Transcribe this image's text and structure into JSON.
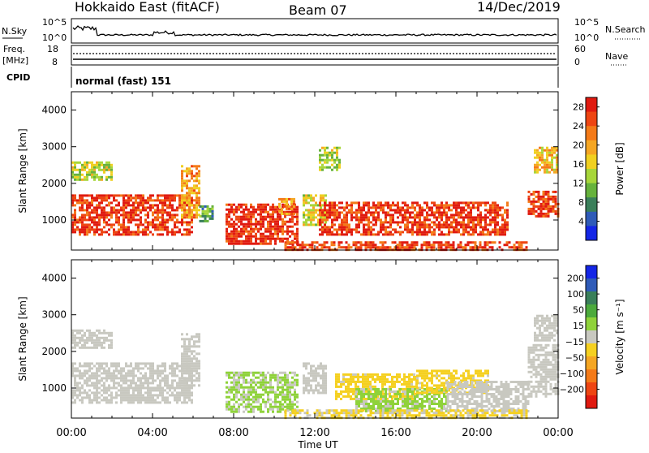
{
  "header": {
    "title": "Hokkaido East (fitACF)",
    "beam": "Beam 07",
    "date": "14/Dec/2019"
  },
  "panels": {
    "nsky": {
      "label": "N.Sky",
      "yticks_left": [
        "10^5",
        "10^0"
      ],
      "right_label": "N.Search",
      "yticks_right": [
        "10^5",
        "10^0"
      ]
    },
    "freq": {
      "label_top": "Freq.",
      "label_unit": "[MHz]",
      "yticks_left": [
        "18",
        "8"
      ],
      "right_label": "Nave",
      "yticks_right": [
        "60",
        "0"
      ]
    },
    "cpid": {
      "label": "CPID",
      "text": "normal (fast) 151"
    }
  },
  "chart_data": [
    {
      "type": "heatmap",
      "name": "power",
      "ylabel": "Slant Range [km]",
      "xlabel": "Time UT",
      "xticks": [
        "00:00",
        "04:00",
        "08:00",
        "12:00",
        "16:00",
        "20:00",
        "00:00"
      ],
      "yticks": [
        "1000",
        "2000",
        "3000",
        "4000"
      ],
      "ylim": [
        180,
        4500
      ],
      "xlim_hours": [
        0,
        24
      ],
      "colorbar": {
        "label": "Power [dB]",
        "ticks": [
          "4",
          "8",
          "12",
          "16",
          "20",
          "24",
          "28"
        ],
        "range": [
          0,
          30
        ],
        "colors": [
          "#1426e6",
          "#2f5bb8",
          "#3a7f5a",
          "#66b23c",
          "#a7d63a",
          "#f0d020",
          "#f5a623",
          "#f47a18",
          "#ee4512",
          "#e01a10"
        ]
      },
      "regions": [
        {
          "t0": 0.0,
          "t1": 6.0,
          "r0": 600,
          "r1": 1700,
          "level": 27
        },
        {
          "t0": 0.0,
          "t1": 2.0,
          "r0": 2100,
          "r1": 2600,
          "level": 14
        },
        {
          "t0": 5.4,
          "t1": 6.3,
          "r0": 1100,
          "r1": 2500,
          "level": 20
        },
        {
          "t0": 6.3,
          "t1": 7.0,
          "r0": 1000,
          "r1": 1400,
          "level": 10
        },
        {
          "t0": 7.6,
          "t1": 11.2,
          "r0": 350,
          "r1": 1450,
          "level": 28
        },
        {
          "t0": 10.2,
          "t1": 11.0,
          "r0": 1200,
          "r1": 1600,
          "level": 20
        },
        {
          "t0": 11.4,
          "t1": 12.6,
          "r0": 900,
          "r1": 1700,
          "level": 16
        },
        {
          "t0": 12.2,
          "t1": 21.5,
          "r0": 600,
          "r1": 1500,
          "level": 27
        },
        {
          "t0": 10.5,
          "t1": 22.5,
          "r0": 190,
          "r1": 420,
          "level": 26
        },
        {
          "t0": 22.5,
          "t1": 24.0,
          "r0": 1100,
          "r1": 1800,
          "level": 27
        },
        {
          "t0": 22.8,
          "t1": 24.0,
          "r0": 2300,
          "r1": 3000,
          "level": 18
        },
        {
          "t0": 12.2,
          "t1": 13.2,
          "r0": 2400,
          "r1": 3000,
          "level": 14
        }
      ]
    },
    {
      "type": "heatmap",
      "name": "velocity",
      "ylabel": "Slant Range [km]",
      "xlabel": "Time UT",
      "xticks": [
        "00:00",
        "04:00",
        "08:00",
        "12:00",
        "16:00",
        "20:00",
        "00:00"
      ],
      "yticks": [
        "1000",
        "2000",
        "3000",
        "4000"
      ],
      "ylim": [
        180,
        4500
      ],
      "xlim_hours": [
        0,
        24
      ],
      "colorbar": {
        "label": "Velocity [m s^-1]",
        "ticks": [
          "200",
          "100",
          "50",
          "15",
          "-15",
          "-50",
          "-100",
          "-200"
        ],
        "range": [
          -250,
          250
        ],
        "colors": [
          "#1426e6",
          "#2f5bb8",
          "#3a7f5a",
          "#4caa3c",
          "#8fd23a",
          "#c8c8c0",
          "#f5d020",
          "#f5a623",
          "#f47a18",
          "#ee4512",
          "#e01a10"
        ]
      },
      "regions": [
        {
          "t0": 0.0,
          "t1": 6.0,
          "r0": 600,
          "r1": 1700,
          "level": 0
        },
        {
          "t0": 0.0,
          "t1": 2.0,
          "r0": 2100,
          "r1": 2600,
          "level": 0
        },
        {
          "t0": 5.4,
          "t1": 6.3,
          "r0": 1100,
          "r1": 2500,
          "level": 0
        },
        {
          "t0": 7.6,
          "t1": 11.2,
          "r0": 350,
          "r1": 1450,
          "level": 30
        },
        {
          "t0": 11.4,
          "t1": 12.6,
          "r0": 900,
          "r1": 1700,
          "level": 0
        },
        {
          "t0": 13.0,
          "t1": 17.0,
          "r0": 700,
          "r1": 1400,
          "level": -40
        },
        {
          "t0": 14.0,
          "t1": 18.5,
          "r0": 400,
          "r1": 1000,
          "level": 35
        },
        {
          "t0": 17.0,
          "t1": 20.5,
          "r0": 900,
          "r1": 1500,
          "level": -40
        },
        {
          "t0": 18.5,
          "t1": 22.5,
          "r0": 400,
          "r1": 1200,
          "level": 0
        },
        {
          "t0": 10.5,
          "t1": 22.5,
          "r0": 190,
          "r1": 420,
          "level": -30
        },
        {
          "t0": 22.5,
          "t1": 24.0,
          "r0": 800,
          "r1": 2200,
          "level": 0
        },
        {
          "t0": 22.8,
          "t1": 24.0,
          "r0": 2300,
          "r1": 3000,
          "level": 0
        }
      ]
    }
  ]
}
